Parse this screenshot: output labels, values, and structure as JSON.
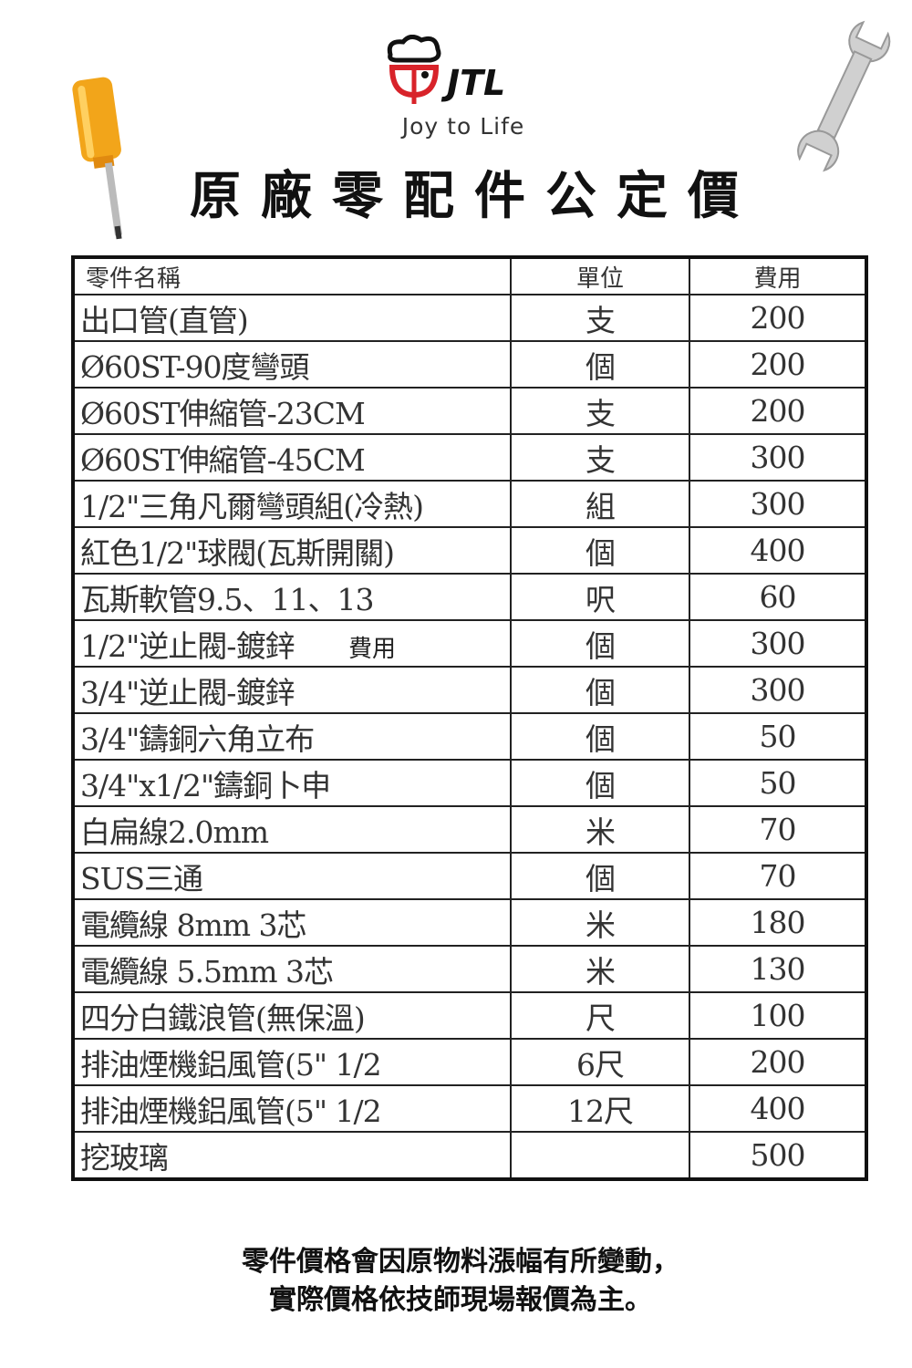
{
  "header": {
    "logo_text": "JTL",
    "tagline": "Joy to Life",
    "title": "原廠零配件公定價"
  },
  "table": {
    "columns": [
      "零件名稱",
      "單位",
      "費用"
    ],
    "rows": [
      {
        "name": "出口管(直管)",
        "unit": "支",
        "fee": "200"
      },
      {
        "name": "Ø60ST-90度彎頭",
        "unit": "個",
        "fee": "200"
      },
      {
        "name": "Ø60ST伸縮管-23CM",
        "unit": "支",
        "fee": "200"
      },
      {
        "name": "Ø60ST伸縮管-45CM",
        "unit": "支",
        "fee": "300"
      },
      {
        "name": "1/2\"三角凡爾彎頭組(冷熱)",
        "unit": "組",
        "fee": "300"
      },
      {
        "name": "紅色1/2\"球閥(瓦斯開關)",
        "unit": "個",
        "fee": "400"
      },
      {
        "name": "瓦斯軟管9.5、11、13",
        "unit": "呎",
        "fee": "60"
      },
      {
        "name": "1/2\"逆止閥-鍍鋅",
        "unit": "個",
        "fee": "300",
        "extra": "費用"
      },
      {
        "name": "3/4\"逆止閥-鍍鋅",
        "unit": "個",
        "fee": "300"
      },
      {
        "name": "3/4\"鑄銅六角立布",
        "unit": "個",
        "fee": "50"
      },
      {
        "name": "3/4\"x1/2\"鑄銅卜申",
        "unit": "個",
        "fee": "50"
      },
      {
        "name": "白扁線2.0mm",
        "unit": "米",
        "fee": "70"
      },
      {
        "name": "SUS三通",
        "unit": "個",
        "fee": "70"
      },
      {
        "name": "電纜線 8mm 3芯",
        "unit": "米",
        "fee": "180"
      },
      {
        "name": "電纜線 5.5mm 3芯",
        "unit": "米",
        "fee": "130"
      },
      {
        "name": "四分白鐵浪管(無保溫)",
        "unit": "尺",
        "fee": "100"
      },
      {
        "name": "排油煙機鋁風管(5\" 1/2",
        "unit": "6尺",
        "fee": "200"
      },
      {
        "name": "排油煙機鋁風管(5\" 1/2",
        "unit": "12尺",
        "fee": "400"
      },
      {
        "name": "挖玻璃",
        "unit": "",
        "fee": "500"
      }
    ]
  },
  "footer": {
    "line1": "零件價格會因原物料漲幅有所變動，",
    "line2": "實際價格依技師現場報價為主。"
  },
  "colors": {
    "logo_red": "#d8232a",
    "handle_yellow": "#f2a51a"
  }
}
